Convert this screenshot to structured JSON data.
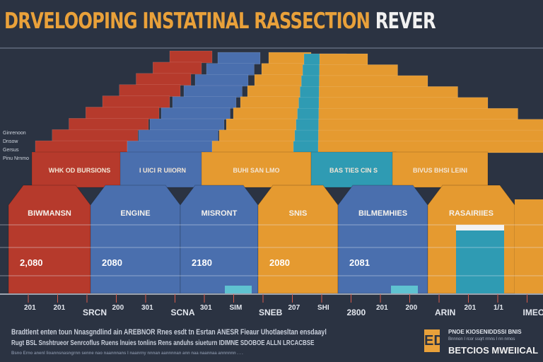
{
  "title": {
    "part1": "DRVELOOPING INSTATINAL",
    "part2": "RASSECTION",
    "part3": "REVER"
  },
  "colors": {
    "background": "#2b3342",
    "red": "#b63a2c",
    "blue": "#4a6fae",
    "orange": "#e59a30",
    "teal": "#2f9bb3",
    "title": "#e9a13a"
  },
  "chart_data": {
    "type": "bar",
    "title": "DRVELOOPING INSTATINAL RASSECTION REVER",
    "categories": [
      "BIWMANSN",
      "ENGINE",
      "MISRONT",
      "SNIS",
      "BILMEMHIES",
      "RASAIRIIES"
    ],
    "values": [
      2080,
      2080,
      2180,
      2080,
      2081,
      2080
    ],
    "value_labels": [
      "2,080",
      "2080",
      "2180",
      "2080",
      "2081",
      ""
    ],
    "series_colors": [
      "red",
      "blue",
      "blue",
      "orange",
      "blue",
      "orange"
    ],
    "tier_labels": [
      "WHK OD BURSIONS",
      "I UICI R UIIORN",
      "BUHI SAN LMO",
      "BAS TIES CIN S",
      "BIVUS BHSI LEINI"
    ],
    "x_ticks": [
      "201",
      "201",
      "SRCN",
      "200",
      "301",
      "SCNA",
      "301",
      "SIM",
      "SNEB",
      "207",
      "SHI",
      "2800",
      "201",
      "200",
      "ARIN",
      "201",
      "1/1",
      "IMEON"
    ],
    "grid": true
  },
  "side_notes": [
    "Ginrenoon",
    "Dnsow",
    "Gersus",
    "Pinu Nrnmo"
  ],
  "footer": {
    "line1": "Bradtlent enten toun Nnasgndlind ain AREBNOR Rnes esdt tn Esrtan ANESR Fieaur Uhotlaesltan ensdaayl",
    "line2": "Rugt BSL Snshtrueor Senrcoflus Ruens lnuies tonlins Rens anduhs siueturn IDIMNE SDOBOE ALLN LRCACBSE",
    "line3": "Bsno Erno anenl lioannsnasngrnn senne nao naannnans I naanrny nnnan aannnnan ann naa naannaa annnnnn . . ."
  },
  "brand": {
    "logo": "ED",
    "line1": "PNOE KIOSENIDDSSI BNIS",
    "line2": "Bnnnon I rcor ssqrt rrnns I nn nrnos",
    "line3": "BETCIOS MWEIICAL"
  }
}
